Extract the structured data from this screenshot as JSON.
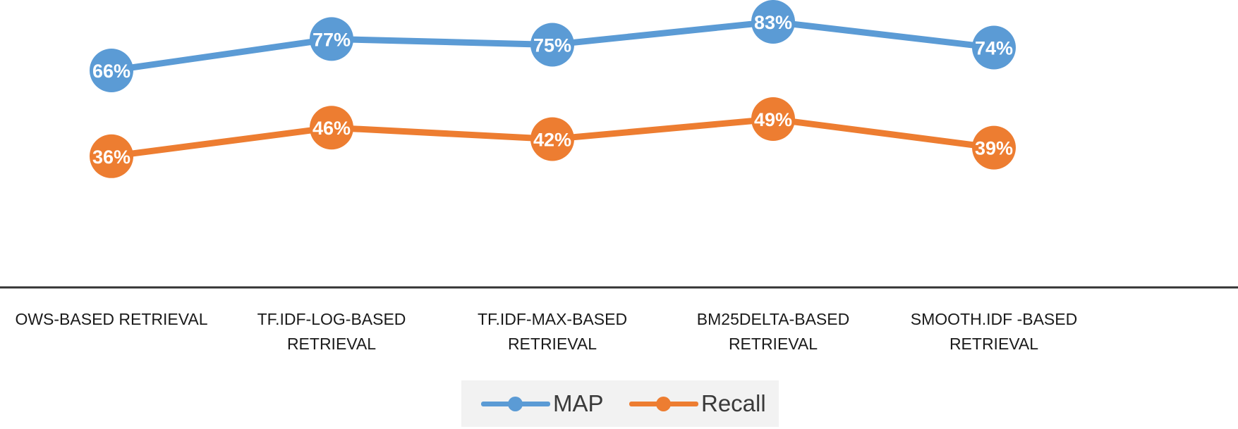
{
  "chart_data": {
    "type": "line",
    "title": "",
    "xlabel": "",
    "ylabel": "",
    "categories": [
      "OWS-BASED RETRIEVAL",
      "TF.IDF-LOG-BASED\nRETRIEVAL",
      "TF.IDF-MAX-BASED\nRETRIEVAL",
      "BM25DELTA-BASED\nRETRIEVAL",
      "SMOOTH.IDF -BASED\nRETRIEVAL"
    ],
    "series": [
      {
        "name": "MAP",
        "color": "#5b9bd5",
        "values": [
          66,
          77,
          75,
          83,
          74
        ],
        "labels": [
          "66%",
          "77%",
          "75%",
          "83%",
          "74%"
        ]
      },
      {
        "name": "Recall",
        "color": "#ed7d31",
        "values": [
          36,
          46,
          42,
          49,
          39
        ],
        "labels": [
          "36%",
          "46%",
          "42%",
          "49%",
          "39%"
        ]
      }
    ],
    "ylim": [
      0,
      85
    ],
    "grid": false,
    "legend_position": "bottom"
  }
}
